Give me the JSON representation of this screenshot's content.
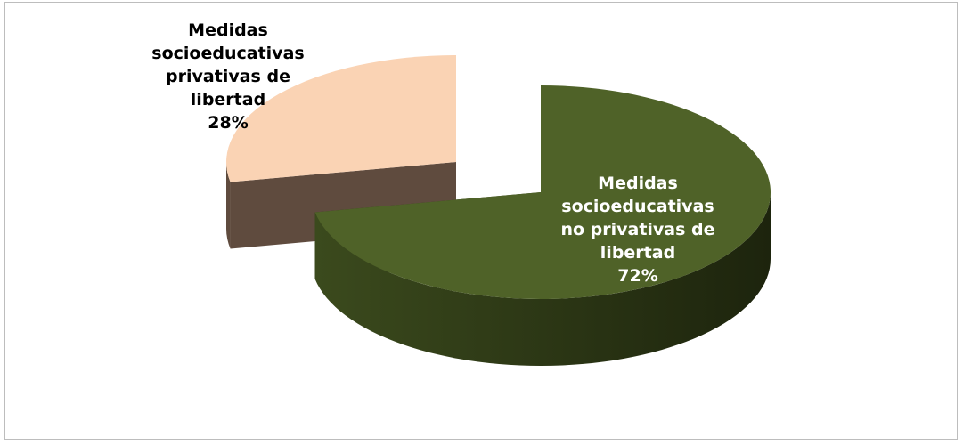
{
  "chart_data": {
    "type": "pie",
    "title": "",
    "slices": [
      {
        "label_lines": [
          "Medidas",
          "socioeducativas",
          "no privativas de",
          "libertad"
        ],
        "percent_label": "72%",
        "value": 72,
        "top_color": "#4f6228",
        "side_color": "#2f3a17"
      },
      {
        "label_lines": [
          "Medidas",
          "socioeducativas",
          "privativas de",
          "libertad"
        ],
        "percent_label": "28%",
        "value": 28,
        "top_color": "#fad3b4",
        "side_color": "#5f4b3e"
      }
    ]
  }
}
